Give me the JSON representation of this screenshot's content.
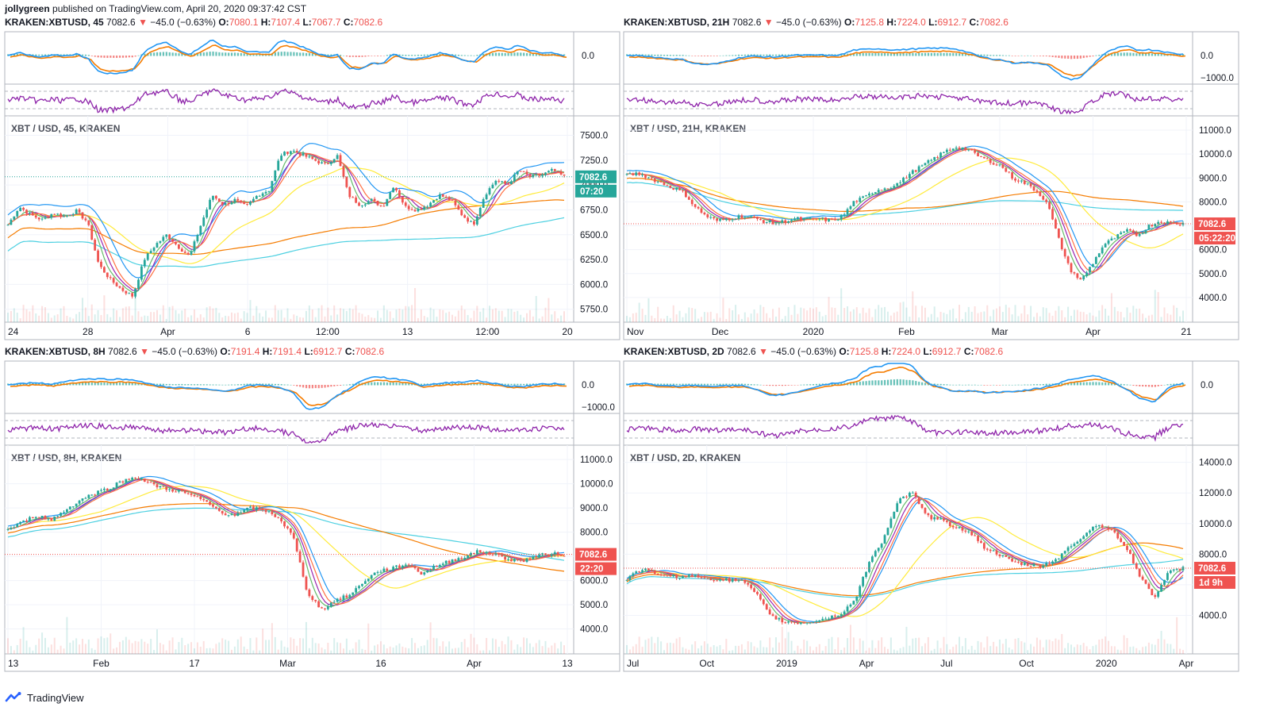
{
  "header": {
    "author": "jollygreen",
    "published": "published on TradingView.com, April 20, 2020 09:37:42 CST"
  },
  "footer": {
    "brand": "TradingView",
    "logo_icon": "tradingview-logo-icon"
  },
  "colors": {
    "up": "#26a69a",
    "down": "#ef5350",
    "ma_orange": "#f57c00",
    "ma_cyan": "#4dd0e1",
    "ma_yellow": "#ffeb3b",
    "ma_blue": "#2196f3",
    "ma_purple": "#9c27b0",
    "rsi": "#8e24aa",
    "price_tag_up": "#26a69a",
    "price_tag_down": "#ef5350"
  },
  "chart_data": [
    {
      "type": "candlestick",
      "symbol": "KRAKEN:XBTUSD",
      "interval": "45",
      "last": "7082.6",
      "change": "−45.0 (−0.63%)",
      "O": "7080.1",
      "H": "7107.4",
      "L": "7067.7",
      "C": "7082.6",
      "pane_title": "XBT / USD, 45, KRAKEN",
      "macd_ticks": [
        "0.0"
      ],
      "price_ticks": [
        "7500.0",
        "7250.0",
        "7000.0",
        "6750.0",
        "6500.0",
        "6250.0",
        "6000.0",
        "5750.0"
      ],
      "ylim": [
        5700,
        7600
      ],
      "x_ticks": [
        "24",
        "28",
        "Apr",
        "6",
        "12:00",
        "13",
        "12:00",
        "20"
      ],
      "price_tag": "7082.6",
      "countdown": "07:20",
      "tag_color": "up",
      "close_path": [
        6600,
        6780,
        6700,
        6650,
        6720,
        6680,
        6740,
        6630,
        6200,
        6050,
        5950,
        5880,
        6250,
        6400,
        6500,
        6380,
        6280,
        6600,
        6900,
        6800,
        6850,
        6780,
        6900,
        6950,
        7300,
        7350,
        7300,
        7250,
        7200,
        7300,
        6900,
        6800,
        6850,
        6780,
        7000,
        6780,
        6750,
        6800,
        6900,
        6850,
        6700,
        6600,
        6900,
        7050,
        7000,
        7150,
        7080,
        7100,
        7150,
        7082
      ]
    },
    {
      "type": "candlestick",
      "symbol": "KRAKEN:XBTUSD",
      "interval": "21H",
      "last": "7082.6",
      "change": "−45.0 (−0.63%)",
      "O": "7125.8",
      "H": "7224.0",
      "L": "6912.7",
      "C": "7082.6",
      "pane_title": "XBT / USD, 21H, KRAKEN",
      "macd_ticks": [
        "0.0",
        "−1000.0"
      ],
      "price_ticks": [
        "11000.0",
        "10000.0",
        "9000.0",
        "8000.0",
        "7000.0",
        "6000.0",
        "5000.0",
        "4000.0"
      ],
      "ylim": [
        3300,
        11200
      ],
      "x_ticks": [
        "Nov",
        "Dec",
        "2020",
        "Feb",
        "Mar",
        "Apr",
        "21"
      ],
      "price_tag": "7082.6",
      "countdown": "05:22:20",
      "tag_color": "down",
      "close_path": [
        9100,
        9200,
        9000,
        8800,
        8600,
        8400,
        7800,
        7400,
        7200,
        7300,
        7400,
        7350,
        7200,
        7100,
        7200,
        7300,
        7250,
        7300,
        7200,
        7400,
        8000,
        8200,
        8500,
        8600,
        8800,
        9200,
        9500,
        9800,
        10100,
        10300,
        10200,
        9900,
        9700,
        9500,
        9000,
        8800,
        8500,
        8000,
        6500,
        5200,
        4700,
        5400,
        6200,
        6500,
        6800,
        6600,
        7000,
        7200,
        7100,
        7082
      ]
    },
    {
      "type": "candlestick",
      "symbol": "KRAKEN:XBTUSD",
      "interval": "8H",
      "last": "7082.6",
      "change": "−45.0 (−0.63%)",
      "O": "7191.4",
      "H": "7191.4",
      "L": "6912.7",
      "C": "7082.6",
      "pane_title": "XBT / USD, 8H, KRAKEN",
      "macd_ticks": [
        "0.0",
        "−1000.0"
      ],
      "price_ticks": [
        "11000.0",
        "10000.0",
        "9000.0",
        "8000.0",
        "7000.0",
        "6000.0",
        "5000.0",
        "4000.0"
      ],
      "ylim": [
        3300,
        11200
      ],
      "x_ticks": [
        "13",
        "Feb",
        "17",
        "Mar",
        "16",
        "Apr",
        "13"
      ],
      "price_tag": "7082.6",
      "countdown": "22:20",
      "tag_color": "down",
      "close_path": [
        8100,
        8400,
        8700,
        8500,
        8900,
        9300,
        9600,
        9800,
        10100,
        10300,
        10000,
        9800,
        9700,
        9500,
        9200,
        8800,
        8700,
        9000,
        8900,
        8600,
        7800,
        5500,
        4800,
        5200,
        5400,
        6000,
        6400,
        6500,
        6700,
        6300,
        6600,
        6800,
        7000,
        7200,
        7100,
        6900,
        6800,
        7000,
        7100,
        7082
      ]
    },
    {
      "type": "candlestick",
      "symbol": "KRAKEN:XBTUSD",
      "interval": "2D",
      "last": "7082.6",
      "change": "−45.0 (−0.63%)",
      "O": "7125.8",
      "H": "7224.0",
      "L": "6912.7",
      "C": "7082.6",
      "pane_title": "XBT / USD, 2D, KRAKEN",
      "macd_ticks": [
        "0.0"
      ],
      "price_ticks": [
        "14000.0",
        "12000.0",
        "10000.0",
        "8000.0",
        "6000.0",
        "4000.0"
      ],
      "ylim": [
        2000,
        14500
      ],
      "x_ticks": [
        "Jul",
        "Oct",
        "2019",
        "Apr",
        "Jul",
        "Oct",
        "2020",
        "Apr"
      ],
      "price_tag": "7082.6",
      "countdown": "1d 9h",
      "tag_color": "down",
      "close_path": [
        6400,
        7000,
        6800,
        6500,
        6600,
        6500,
        6400,
        6300,
        6300,
        5500,
        4000,
        3600,
        3500,
        3600,
        3800,
        4100,
        5000,
        7500,
        9000,
        11500,
        12000,
        10500,
        10200,
        9800,
        9500,
        8500,
        8000,
        7500,
        7300,
        7200,
        7600,
        8400,
        9200,
        10000,
        9500,
        8500,
        6500,
        5200,
        6800,
        7082
      ]
    }
  ]
}
